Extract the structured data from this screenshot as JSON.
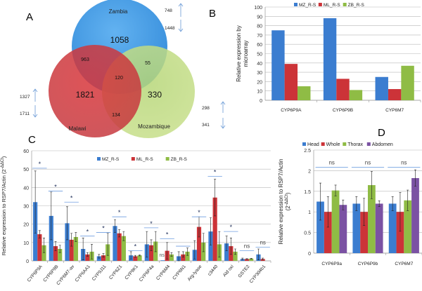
{
  "colors": {
    "blue": "#3b7dd0",
    "red": "#cc3338",
    "green": "#8fbc45",
    "purple": "#7b52a3",
    "arrow": "#6a9ad6",
    "sig": "#6f9ee0"
  },
  "panels": {
    "a": "A",
    "b": "B",
    "c": "C",
    "d": "D"
  },
  "venn": {
    "sets": [
      "Zambia",
      "Malawi",
      "Mozambique"
    ],
    "regions": {
      "zambia_only": "1058",
      "malawi_only": "1821",
      "mozambique_only": "330",
      "zambia_malawi": "963",
      "zambia_mozambique": "55",
      "malawi_mozambique": "134",
      "all": "120"
    },
    "counts": {
      "zambia_up": "748",
      "zambia_down": "1448",
      "malawi_up": "1327",
      "malawi_down": "1711",
      "mozambique_up": "298",
      "mozambique_down": "341"
    }
  },
  "chart_data": [
    {
      "id": "B",
      "type": "bar",
      "title": "",
      "ylabel": [
        "Relative expression by",
        "microarray"
      ],
      "xlabel": "",
      "ylim": [
        0,
        100
      ],
      "yticks": [
        0,
        10,
        20,
        30,
        40,
        50,
        60,
        70,
        80,
        90,
        100
      ],
      "grid": true,
      "legend": "top",
      "categories": [
        "CYP6P9A",
        "CYP6P9B",
        "CYP6M7"
      ],
      "series": [
        {
          "name": "MZ_R-S",
          "color": "blue",
          "values": [
            75,
            88,
            25
          ]
        },
        {
          "name": "ML_R-S",
          "color": "red",
          "values": [
            39,
            23,
            12
          ]
        },
        {
          "name": "ZB_R-S",
          "color": "green",
          "values": [
            15,
            11,
            37
          ]
        }
      ]
    },
    {
      "id": "C",
      "type": "bar",
      "ylabel": [
        "Relative expression to RSP7/Actin (2",
        "-ΔΔCt",
        ")"
      ],
      "xlabel": "",
      "ylim": [
        0,
        60
      ],
      "yticks": [
        0,
        10,
        20,
        30,
        40,
        50,
        60
      ],
      "grid": true,
      "legend": "top",
      "categories": [
        "CYP6P9A",
        "CYP6P9B",
        "CYP6M7-av",
        "CYP6AA1",
        "CYP9J11",
        "CYP6Z1",
        "CYP9K1",
        "CYP6P4a",
        "CYP6M4",
        "CYP6N1",
        "Arg-lyase",
        "c3440",
        "Ald oxi",
        "GSTE2",
        "CYP304b1"
      ],
      "series": [
        {
          "name": "MZ_R-S",
          "color": "blue",
          "values": [
            32,
            24.5,
            20.5,
            6.5,
            2.5,
            19,
            3,
            9,
            0.3,
            2.5,
            6,
            16,
            9.5,
            1,
            3.5
          ],
          "errors": [
            17,
            13,
            9,
            6,
            1,
            3.5,
            2,
            7,
            0,
            2.5,
            5,
            7.5,
            4,
            0.5,
            3
          ]
        },
        {
          "name": "ML_R-S",
          "color": "red",
          "values": [
            14.5,
            8,
            11.5,
            3.5,
            3,
            15,
            2.5,
            8.5,
            5.5,
            3.5,
            18.5,
            34.5,
            8,
            1,
            1
          ],
          "errors": [
            2,
            2.5,
            3.5,
            1,
            1,
            2,
            0.5,
            3,
            4.5,
            1.5,
            5.5,
            10,
            4.5,
            0.2,
            0.5
          ]
        },
        {
          "name": "ZB_R-S",
          "color": "green",
          "values": [
            8.5,
            6.5,
            13,
            5,
            9,
            13.5,
            3,
            10.5,
            3.5,
            5,
            10,
            9,
            5,
            1.2,
            0
          ],
          "errors": [
            4,
            2,
            2.5,
            4,
            6,
            2.5,
            0.3,
            5.5,
            1,
            2,
            5,
            7,
            1.5,
            0.2,
            0
          ]
        }
      ],
      "significance": [
        {
          "label": "*",
          "line": 50.5
        },
        {
          "label": "*",
          "line": 38
        },
        {
          "label": "*",
          "line": 32
        },
        {
          "label": "*",
          "line": 13.5
        },
        {
          "label": "*",
          "line": 15.5
        },
        {
          "label": "*",
          "line": 24
        },
        {
          "label": "*",
          "line": 5.5
        },
        {
          "label": "*",
          "line": 18
        },
        {
          "label": "*",
          "line": 12
        },
        {
          "label": "",
          "line": 8
        },
        {
          "label": "*",
          "line": 24
        },
        {
          "label": "*",
          "line": 46
        },
        {
          "label": "*",
          "line": 16
        },
        {
          "label": "ns",
          "line": 5.5
        },
        {
          "label": "ns",
          "line": 7.5
        }
      ],
      "extra_annotation": {
        "label": "ns",
        "category": "CYP6M4"
      }
    },
    {
      "id": "D",
      "type": "bar",
      "ylabel": [
        "Relative expression to RSP7/Actin",
        "(2",
        "-ΔΔCt",
        ")"
      ],
      "xlabel": "",
      "ylim": [
        0,
        2.5
      ],
      "yticks": [
        0,
        0.5,
        1,
        1.5,
        2,
        2.5
      ],
      "grid": true,
      "legend": "top",
      "categories": [
        "CYP6P9a",
        "CYP6P9b",
        "CYP6M7"
      ],
      "series": [
        {
          "name": "Head",
          "color": "blue",
          "values": [
            1.25,
            1.2,
            1.2
          ],
          "errors": [
            0.45,
            0.17,
            0.17
          ]
        },
        {
          "name": "Whole",
          "color": "red",
          "values": [
            1,
            1,
            1
          ],
          "errors": [
            0.37,
            0.33,
            0.47
          ]
        },
        {
          "name": "Thorax",
          "color": "green",
          "values": [
            1.52,
            1.65,
            1.28
          ],
          "errors": [
            0.13,
            0.33,
            0.25
          ]
        },
        {
          "name": "Abdomen",
          "color": "purple",
          "values": [
            1.17,
            1.2,
            1.82
          ],
          "errors": [
            0.12,
            0.07,
            0.2
          ]
        }
      ],
      "significance": [
        {
          "label": "ns",
          "line": 2.08
        },
        {
          "label": "ns",
          "line": 2.08
        },
        {
          "label": "ns",
          "line": 2.08
        }
      ]
    }
  ]
}
